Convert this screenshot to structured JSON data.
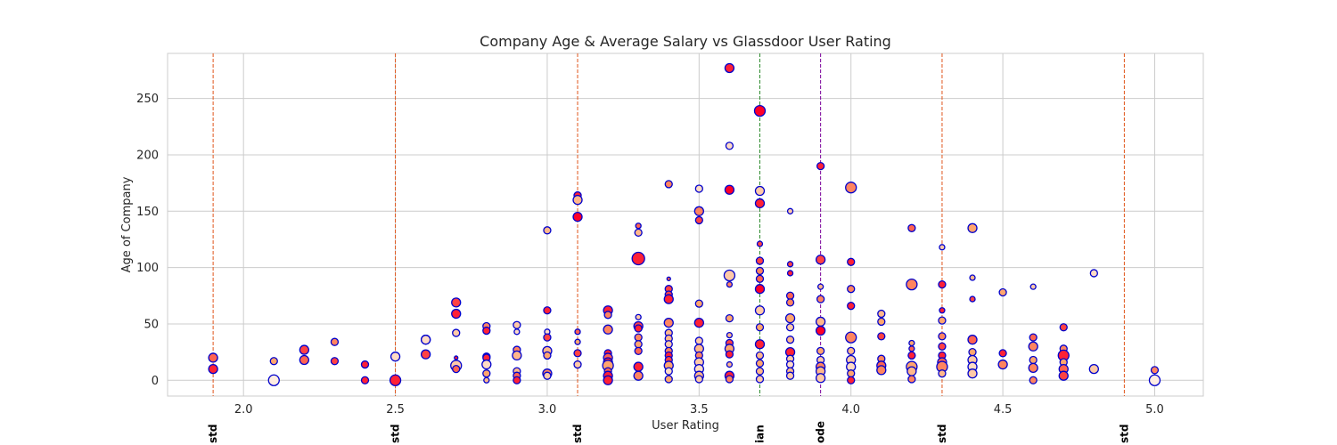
{
  "chart_data": {
    "type": "scatter",
    "title": "Company Age & Average Salary vs Glassdoor User Rating",
    "xlabel": "User Rating",
    "ylabel": "Age of Company",
    "xlim": [
      1.75,
      5.16
    ],
    "ylim": [
      -14,
      290
    ],
    "x_ticks": [
      2.0,
      2.5,
      3.0,
      3.5,
      4.0,
      4.5,
      5.0
    ],
    "x_tick_labels": [
      "2.0",
      "2.5",
      "3.0",
      "3.5",
      "4.0",
      "4.5",
      "5.0"
    ],
    "y_ticks": [
      0,
      50,
      100,
      150,
      200,
      250
    ],
    "y_tick_labels": [
      "0",
      "50",
      "100",
      "150",
      "200",
      "250"
    ],
    "grid": true,
    "marker_edge_color": "#0000cc",
    "fill_colors": {
      "low": "#ffffff",
      "high": "#ff0000"
    },
    "vertical_lines": [
      {
        "x": 1.9,
        "label": "std",
        "color": "#e0551b"
      },
      {
        "x": 2.5,
        "label": "std",
        "color": "#e0551b"
      },
      {
        "x": 3.1,
        "label": "std",
        "color": "#e0551b"
      },
      {
        "x": 3.7,
        "label": "ian",
        "color": "#2e8b2e"
      },
      {
        "x": 3.9,
        "label": "ode",
        "color": "#7a0099"
      },
      {
        "x": 4.3,
        "label": "std",
        "color": "#e0551b"
      },
      {
        "x": 4.9,
        "label": "std",
        "color": "#e0551b"
      }
    ],
    "points": [
      [
        1.9,
        20,
        0.7,
        5
      ],
      [
        1.9,
        10,
        0.9,
        5
      ],
      [
        2.1,
        17,
        0.5,
        4
      ],
      [
        2.1,
        0,
        0.1,
        6
      ],
      [
        2.2,
        27,
        0.8,
        5
      ],
      [
        2.2,
        18,
        0.7,
        5
      ],
      [
        2.3,
        34,
        0.6,
        4
      ],
      [
        2.3,
        17,
        0.8,
        4
      ],
      [
        2.4,
        14,
        0.9,
        4
      ],
      [
        2.4,
        0,
        0.9,
        4
      ],
      [
        2.5,
        21,
        0.2,
        5
      ],
      [
        2.5,
        0,
        0.9,
        6
      ],
      [
        2.6,
        36,
        0.5,
        5
      ],
      [
        2.6,
        36,
        0.2,
        5
      ],
      [
        2.6,
        23,
        0.8,
        5
      ],
      [
        2.7,
        69,
        0.8,
        5
      ],
      [
        2.7,
        59,
        0.9,
        5
      ],
      [
        2.7,
        42,
        0.3,
        4
      ],
      [
        2.7,
        20,
        0.9,
        2
      ],
      [
        2.7,
        13,
        0.3,
        6
      ],
      [
        2.7,
        10,
        0.7,
        4
      ],
      [
        2.8,
        48,
        0.6,
        4
      ],
      [
        2.8,
        44,
        0.9,
        4
      ],
      [
        2.8,
        21,
        0.8,
        4
      ],
      [
        2.8,
        20,
        0.9,
        4
      ],
      [
        2.8,
        14,
        0.2,
        5
      ],
      [
        2.8,
        6,
        0.5,
        4
      ],
      [
        2.8,
        0,
        0.4,
        3
      ],
      [
        2.9,
        49,
        0.3,
        4
      ],
      [
        2.9,
        43,
        0.2,
        3
      ],
      [
        2.9,
        27,
        0.6,
        4
      ],
      [
        2.9,
        22,
        0.4,
        5
      ],
      [
        2.9,
        8,
        0.4,
        4
      ],
      [
        2.9,
        4,
        0.7,
        4
      ],
      [
        2.9,
        0,
        0.9,
        4
      ],
      [
        3.0,
        133,
        0.4,
        4
      ],
      [
        3.0,
        62,
        0.9,
        4
      ],
      [
        3.0,
        43,
        0.2,
        3
      ],
      [
        3.0,
        38,
        0.8,
        4
      ],
      [
        3.0,
        26,
        0.4,
        5
      ],
      [
        3.0,
        22,
        0.5,
        4
      ],
      [
        3.0,
        6,
        0.6,
        5
      ],
      [
        3.0,
        4,
        0.3,
        4
      ],
      [
        3.1,
        164,
        0.9,
        4
      ],
      [
        3.1,
        160,
        0.4,
        5
      ],
      [
        3.1,
        145,
        1.0,
        5
      ],
      [
        3.1,
        43,
        0.7,
        3
      ],
      [
        3.1,
        34,
        0.5,
        3
      ],
      [
        3.1,
        24,
        0.8,
        4
      ],
      [
        3.1,
        14,
        0.3,
        4
      ],
      [
        3.2,
        62,
        0.9,
        5
      ],
      [
        3.2,
        58,
        0.6,
        4
      ],
      [
        3.2,
        45,
        0.6,
        5
      ],
      [
        3.2,
        24,
        0.9,
        4
      ],
      [
        3.2,
        20,
        0.7,
        5
      ],
      [
        3.2,
        16,
        0.9,
        5
      ],
      [
        3.2,
        13,
        0.5,
        6
      ],
      [
        3.2,
        8,
        0.7,
        4
      ],
      [
        3.2,
        4,
        0.9,
        5
      ],
      [
        3.2,
        0,
        0.9,
        5
      ],
      [
        3.3,
        137,
        0.7,
        3
      ],
      [
        3.3,
        131,
        0.4,
        4
      ],
      [
        3.3,
        108,
        0.9,
        7
      ],
      [
        3.3,
        56,
        0.3,
        3
      ],
      [
        3.3,
        48,
        0.8,
        5
      ],
      [
        3.3,
        46,
        0.9,
        4
      ],
      [
        3.3,
        38,
        0.6,
        4
      ],
      [
        3.3,
        32,
        0.5,
        4
      ],
      [
        3.3,
        26,
        0.7,
        4
      ],
      [
        3.3,
        12,
        0.9,
        5
      ],
      [
        3.3,
        4,
        0.6,
        5
      ],
      [
        3.4,
        174,
        0.6,
        4
      ],
      [
        3.4,
        90,
        0.7,
        2
      ],
      [
        3.4,
        81,
        0.8,
        4
      ],
      [
        3.4,
        76,
        0.8,
        4
      ],
      [
        3.4,
        72,
        0.9,
        5
      ],
      [
        3.4,
        51,
        0.6,
        5
      ],
      [
        3.4,
        42,
        0.4,
        4
      ],
      [
        3.4,
        37,
        0.4,
        4
      ],
      [
        3.4,
        32,
        0.3,
        4
      ],
      [
        3.4,
        26,
        0.6,
        4
      ],
      [
        3.4,
        22,
        0.9,
        4
      ],
      [
        3.4,
        18,
        0.8,
        4
      ],
      [
        3.4,
        13,
        0.5,
        5
      ],
      [
        3.4,
        8,
        0.2,
        4
      ],
      [
        3.4,
        1,
        0.5,
        4
      ],
      [
        3.5,
        170,
        0.2,
        4
      ],
      [
        3.5,
        150,
        0.6,
        5
      ],
      [
        3.5,
        142,
        0.8,
        4
      ],
      [
        3.5,
        68,
        0.5,
        4
      ],
      [
        3.5,
        51,
        0.9,
        5
      ],
      [
        3.5,
        35,
        0.3,
        4
      ],
      [
        3.5,
        28,
        0.4,
        5
      ],
      [
        3.5,
        22,
        0.6,
        4
      ],
      [
        3.5,
        16,
        0.3,
        5
      ],
      [
        3.5,
        10,
        0.2,
        5
      ],
      [
        3.5,
        4,
        0.4,
        5
      ],
      [
        3.5,
        1,
        0.3,
        4
      ],
      [
        3.6,
        277,
        0.9,
        5
      ],
      [
        3.6,
        208,
        0.2,
        4
      ],
      [
        3.6,
        169,
        1.0,
        5
      ],
      [
        3.6,
        93,
        0.3,
        6
      ],
      [
        3.6,
        85,
        0.6,
        3
      ],
      [
        3.6,
        55,
        0.5,
        4
      ],
      [
        3.6,
        40,
        0.4,
        3
      ],
      [
        3.6,
        33,
        0.8,
        4
      ],
      [
        3.6,
        28,
        0.5,
        5
      ],
      [
        3.6,
        23,
        0.9,
        4
      ],
      [
        3.6,
        14,
        0.4,
        3
      ],
      [
        3.6,
        4,
        0.9,
        5
      ],
      [
        3.6,
        1,
        0.6,
        4
      ],
      [
        3.7,
        239,
        1.0,
        6
      ],
      [
        3.7,
        168,
        0.3,
        5
      ],
      [
        3.7,
        157,
        0.9,
        5
      ],
      [
        3.7,
        121,
        0.8,
        3
      ],
      [
        3.7,
        106,
        0.8,
        4
      ],
      [
        3.7,
        97,
        0.6,
        4
      ],
      [
        3.7,
        90,
        0.7,
        4
      ],
      [
        3.7,
        81,
        1.0,
        5
      ],
      [
        3.7,
        62,
        0.3,
        5
      ],
      [
        3.7,
        47,
        0.5,
        4
      ],
      [
        3.7,
        32,
        0.9,
        5
      ],
      [
        3.7,
        22,
        0.4,
        4
      ],
      [
        3.7,
        15,
        0.5,
        4
      ],
      [
        3.7,
        8,
        0.4,
        4
      ],
      [
        3.7,
        1,
        0.3,
        4
      ],
      [
        3.8,
        150,
        0.3,
        3
      ],
      [
        3.8,
        103,
        0.8,
        3
      ],
      [
        3.8,
        95,
        0.9,
        3
      ],
      [
        3.8,
        75,
        0.7,
        4
      ],
      [
        3.8,
        69,
        0.6,
        4
      ],
      [
        3.8,
        55,
        0.5,
        5
      ],
      [
        3.8,
        47,
        0.3,
        4
      ],
      [
        3.8,
        36,
        0.4,
        4
      ],
      [
        3.8,
        25,
        0.9,
        5
      ],
      [
        3.8,
        19,
        0.3,
        4
      ],
      [
        3.8,
        14,
        0.2,
        4
      ],
      [
        3.8,
        8,
        0.4,
        4
      ],
      [
        3.8,
        4,
        0.3,
        4
      ],
      [
        3.9,
        190,
        0.9,
        4
      ],
      [
        3.9,
        107,
        0.8,
        5
      ],
      [
        3.9,
        83,
        0.4,
        3
      ],
      [
        3.9,
        72,
        0.6,
        4
      ],
      [
        3.9,
        52,
        0.4,
        5
      ],
      [
        3.9,
        44,
        1.0,
        5
      ],
      [
        3.9,
        26,
        0.5,
        4
      ],
      [
        3.9,
        18,
        0.3,
        4
      ],
      [
        3.9,
        12,
        0.6,
        5
      ],
      [
        3.9,
        8,
        0.4,
        5
      ],
      [
        3.9,
        2,
        0.3,
        5
      ],
      [
        4.0,
        171,
        0.6,
        6
      ],
      [
        4.0,
        105,
        0.9,
        4
      ],
      [
        4.0,
        81,
        0.6,
        4
      ],
      [
        4.0,
        66,
        0.9,
        4
      ],
      [
        4.0,
        38,
        0.6,
        6
      ],
      [
        4.0,
        26,
        0.4,
        4
      ],
      [
        4.0,
        18,
        0.3,
        5
      ],
      [
        4.0,
        12,
        0.2,
        5
      ],
      [
        4.0,
        6,
        0.5,
        4
      ],
      [
        4.0,
        0,
        0.9,
        4
      ],
      [
        4.1,
        59,
        0.4,
        4
      ],
      [
        4.1,
        52,
        0.5,
        4
      ],
      [
        4.1,
        39,
        0.8,
        4
      ],
      [
        4.1,
        19,
        0.6,
        4
      ],
      [
        4.1,
        13,
        0.7,
        5
      ],
      [
        4.1,
        9,
        0.6,
        5
      ],
      [
        4.2,
        135,
        0.7,
        4
      ],
      [
        4.2,
        85,
        0.6,
        6
      ],
      [
        4.2,
        33,
        0.5,
        3
      ],
      [
        4.2,
        28,
        0.7,
        3
      ],
      [
        4.2,
        22,
        0.9,
        4
      ],
      [
        4.2,
        12,
        0.5,
        6
      ],
      [
        4.2,
        8,
        0.4,
        5
      ],
      [
        4.2,
        1,
        0.6,
        4
      ],
      [
        4.3,
        118,
        0.3,
        3
      ],
      [
        4.3,
        85,
        0.9,
        4
      ],
      [
        4.3,
        62,
        0.9,
        3
      ],
      [
        4.3,
        53,
        0.5,
        4
      ],
      [
        4.3,
        39,
        0.6,
        4
      ],
      [
        4.3,
        30,
        0.8,
        4
      ],
      [
        4.3,
        22,
        0.9,
        4
      ],
      [
        4.3,
        16,
        0.7,
        5
      ],
      [
        4.3,
        12,
        0.6,
        6
      ],
      [
        4.3,
        6,
        0.4,
        4
      ],
      [
        4.4,
        135,
        0.5,
        5
      ],
      [
        4.4,
        91,
        0.4,
        3
      ],
      [
        4.4,
        72,
        0.8,
        3
      ],
      [
        4.4,
        36,
        0.7,
        5
      ],
      [
        4.4,
        25,
        0.5,
        4
      ],
      [
        4.4,
        18,
        0.3,
        5
      ],
      [
        4.4,
        12,
        0.2,
        5
      ],
      [
        4.4,
        6,
        0.3,
        5
      ],
      [
        4.5,
        78,
        0.5,
        4
      ],
      [
        4.5,
        24,
        0.9,
        4
      ],
      [
        4.5,
        14,
        0.6,
        5
      ],
      [
        4.6,
        83,
        0.3,
        3
      ],
      [
        4.6,
        38,
        0.7,
        4
      ],
      [
        4.6,
        30,
        0.6,
        5
      ],
      [
        4.6,
        18,
        0.5,
        4
      ],
      [
        4.6,
        11,
        0.6,
        5
      ],
      [
        4.6,
        0,
        0.6,
        4
      ],
      [
        4.7,
        47,
        0.8,
        4
      ],
      [
        4.7,
        28,
        0.6,
        4
      ],
      [
        4.7,
        22,
        0.9,
        6
      ],
      [
        4.7,
        16,
        0.5,
        4
      ],
      [
        4.7,
        10,
        0.7,
        5
      ],
      [
        4.7,
        4,
        0.8,
        5
      ],
      [
        4.8,
        95,
        0.2,
        4
      ],
      [
        4.8,
        10,
        0.3,
        5
      ],
      [
        5.0,
        9,
        0.6,
        4
      ],
      [
        5.0,
        0,
        0.1,
        6
      ]
    ]
  }
}
